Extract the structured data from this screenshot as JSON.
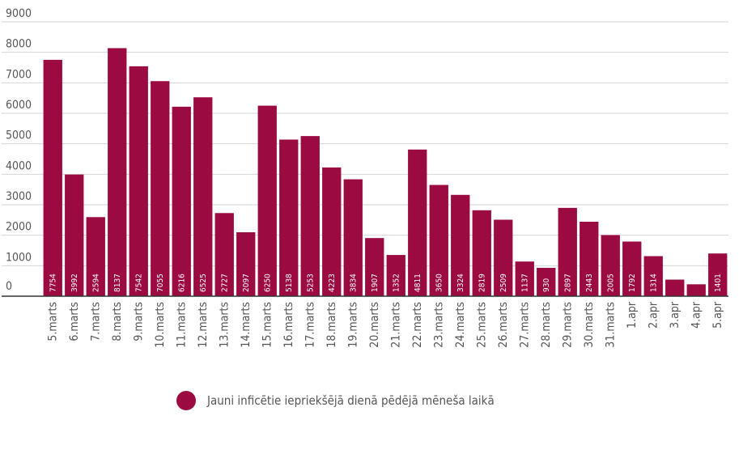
{
  "chart_data": {
    "type": "bar",
    "title": "",
    "xlabel": "",
    "ylabel": "",
    "ylim": [
      0,
      9000
    ],
    "yticks": [
      0,
      1000,
      2000,
      3000,
      4000,
      5000,
      6000,
      7000,
      8000,
      9000
    ],
    "grid": true,
    "categories": [
      "5.marts",
      "6.marts",
      "7.marts",
      "8.marts",
      "9.marts",
      "10.marts",
      "11.marts",
      "12.marts",
      "13.marts",
      "14.marts",
      "15.marts",
      "16.marts",
      "17.marts",
      "18.marts",
      "19.marts",
      "20.marts",
      "21.marts",
      "22.marts",
      "23.marts",
      "24.marts",
      "25.marts",
      "26.marts",
      "27.marts",
      "28.marts",
      "29.marts",
      "30.marts",
      "31.marts",
      "1.apr",
      "2.apr",
      "3.apr",
      "4.apr",
      "5.apr"
    ],
    "values": [
      7754,
      3992,
      2594,
      8137,
      7542,
      7055,
      6216,
      6525,
      2727,
      2097,
      6250,
      5138,
      5253,
      4223,
      3834,
      1907,
      1352,
      4811,
      3650,
      3324,
      2819,
      2509,
      1137,
      930,
      2897,
      2443,
      2005,
      1792,
      1314,
      544,
      390,
      1401
    ],
    "data_labels": [
      "7754",
      "3992",
      "2594",
      "8137",
      "7542",
      "7055",
      "6216",
      "6525",
      "2727",
      "2097",
      "6250",
      "5138",
      "5253",
      "4223",
      "3834",
      "1907",
      "1352",
      "4811",
      "3650",
      "3324",
      "2819",
      "2509",
      "1137",
      "930",
      "2897",
      "2443",
      "2005",
      "1792",
      "1314",
      "",
      "",
      "1401"
    ],
    "series": [
      {
        "name": "Jauni inficētie iepriekšējā dienā pēdējā mēneša laikā",
        "color": "#9c0a42"
      }
    ]
  },
  "legend": {
    "label": "Jauni inficētie iepriekšējā dienā pēdējā mēneša laikā",
    "position": "bottom-center"
  },
  "colors": {
    "bar": "#9c0a42",
    "grid": "#d6d6d6",
    "axis": "#333333",
    "tick_text": "#555555",
    "data_label": "#ffffff"
  }
}
